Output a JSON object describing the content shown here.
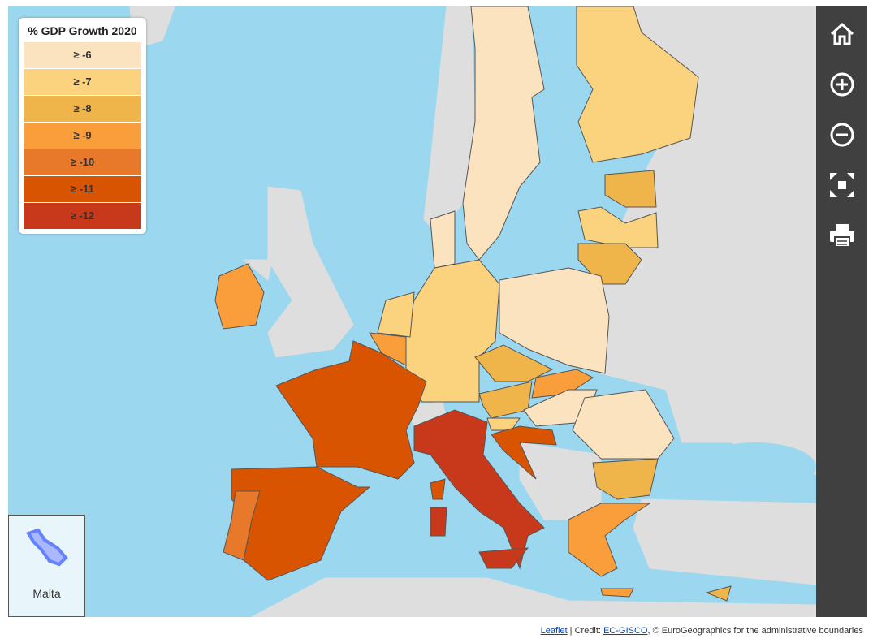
{
  "legend": {
    "title": "% GDP Growth 2020",
    "items": [
      {
        "label": "≥ -6",
        "color": "#fbe3c0"
      },
      {
        "label": "≥ -7",
        "color": "#fbd27e"
      },
      {
        "label": "≥ -8",
        "color": "#efb44a"
      },
      {
        "label": "≥ -9",
        "color": "#fa9e3c"
      },
      {
        "label": "≥ -10",
        "color": "#e8792a"
      },
      {
        "label": "≥ -11",
        "color": "#d95400"
      },
      {
        "label": "≥ -12",
        "color": "#c8391c"
      }
    ]
  },
  "inset": {
    "label": "Malta"
  },
  "attribution": {
    "leaflet": "Leaflet",
    "credit": " | Credit: ",
    "source": "EC-GISCO",
    "rest": ", © EuroGeographics for the administrative boundaries"
  }
}
